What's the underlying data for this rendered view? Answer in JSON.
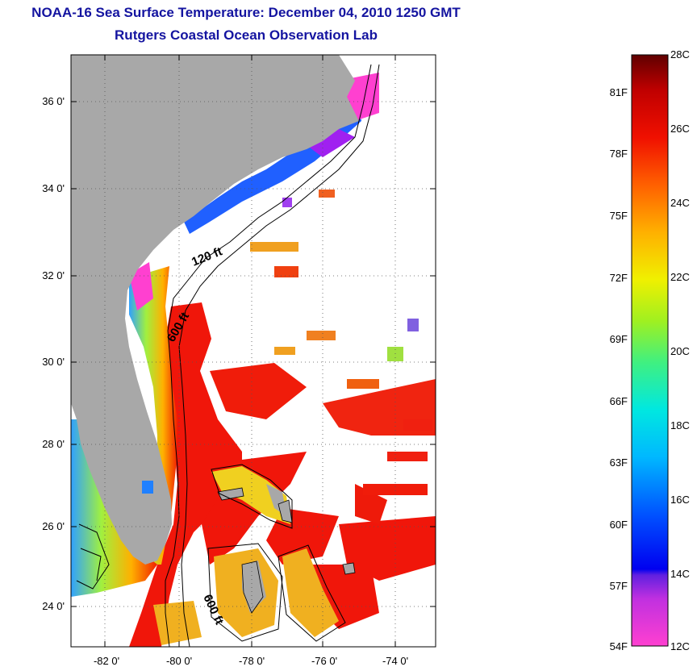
{
  "header": {
    "title": "NOAA-16 Sea Surface Temperature:  December 04, 2010 1250 GMT",
    "subtitle": "Rutgers Coastal Ocean Observation Lab"
  },
  "map": {
    "lat_labels": [
      "36 0'",
      "34 0'",
      "32 0'",
      "30 0'",
      "28 0'",
      "26 0'",
      "24 0'"
    ],
    "lon_labels": [
      "-82 0'",
      "-80 0'",
      "-78 0'",
      "-76 0'",
      "-74 0'"
    ],
    "contour_labels": {
      "shelf_120": "120 ft",
      "slope_600_north": "600 ft",
      "slope_600_south": "600 ft"
    },
    "colors": {
      "land": "#a8a8a8",
      "warm": "#f0100a",
      "grid": "#000000"
    }
  },
  "colorbar": {
    "celsius_labels": [
      "28C",
      "26C",
      "24C",
      "22C",
      "20C",
      "18C",
      "16C",
      "14C",
      "12C"
    ],
    "fahrenheit_labels": [
      "81F",
      "78F",
      "75F",
      "72F",
      "69F",
      "66F",
      "63F",
      "60F",
      "57F",
      "54F"
    ],
    "range_celsius": [
      12,
      28
    ]
  }
}
